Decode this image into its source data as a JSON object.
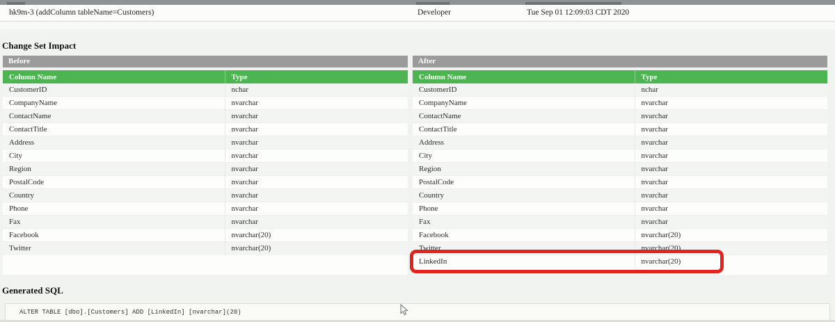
{
  "header_row": {
    "changeset": "hk9m-3 (addColumn tableName=Customers)",
    "author": "Developer",
    "date_executed": "Tue Sep 01 12:09:03 CDT 2020"
  },
  "impact": {
    "title": "Change Set Impact",
    "before": {
      "title": "Before",
      "columns": [
        "Column Name",
        "Type"
      ],
      "rows": [
        [
          "CustomerID",
          "nchar"
        ],
        [
          "CompanyName",
          "nvarchar"
        ],
        [
          "ContactName",
          "nvarchar"
        ],
        [
          "ContactTitle",
          "nvarchar"
        ],
        [
          "Address",
          "nvarchar"
        ],
        [
          "City",
          "nvarchar"
        ],
        [
          "Region",
          "nvarchar"
        ],
        [
          "PostalCode",
          "nvarchar"
        ],
        [
          "Country",
          "nvarchar"
        ],
        [
          "Phone",
          "nvarchar"
        ],
        [
          "Fax",
          "nvarchar"
        ],
        [
          "Facebook",
          "nvarchar(20)"
        ],
        [
          "Twitter",
          "nvarchar(20)"
        ]
      ]
    },
    "after": {
      "title": "After",
      "columns": [
        "Column Name",
        "Type"
      ],
      "rows": [
        [
          "CustomerID",
          "nchar"
        ],
        [
          "CompanyName",
          "nvarchar"
        ],
        [
          "ContactName",
          "nvarchar"
        ],
        [
          "ContactTitle",
          "nvarchar"
        ],
        [
          "Address",
          "nvarchar"
        ],
        [
          "City",
          "nvarchar"
        ],
        [
          "Region",
          "nvarchar"
        ],
        [
          "PostalCode",
          "nvarchar"
        ],
        [
          "Country",
          "nvarchar"
        ],
        [
          "Phone",
          "nvarchar"
        ],
        [
          "Fax",
          "nvarchar"
        ],
        [
          "Facebook",
          "nvarchar(20)"
        ],
        [
          "Twitter",
          "nvarchar(20)"
        ],
        [
          "LinkedIn",
          "nvarchar(20)"
        ]
      ],
      "highlighted_row": [
        "LinkedIn",
        "nvarchar(20)"
      ]
    }
  },
  "generated_sql": {
    "title": "Generated SQL",
    "sql": "ALTER TABLE [dbo].[Customers] ADD [LinkedIn] [nvarchar](20)"
  },
  "colors": {
    "column_header_green": "#4cb451",
    "panel_title_gray": "#9b9b9b",
    "highlight_red": "#e3241e"
  }
}
